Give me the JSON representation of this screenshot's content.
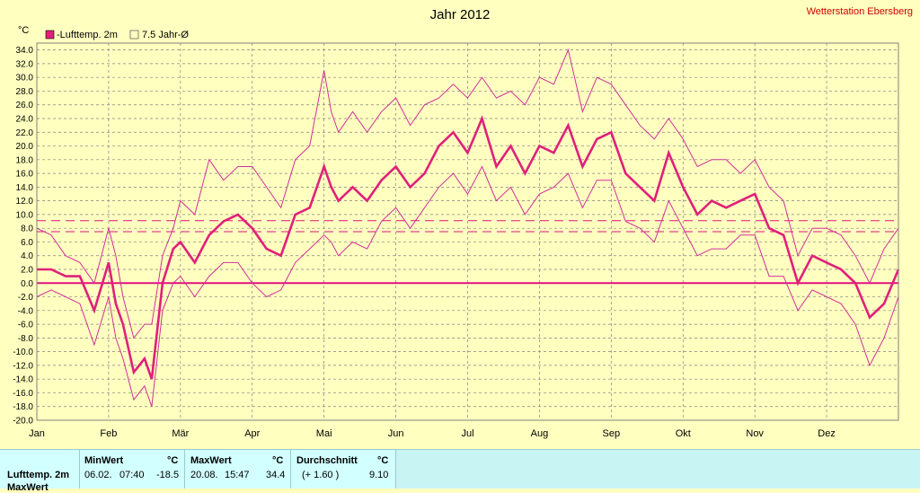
{
  "chart_data": {
    "type": "line",
    "title": "Jahr 2012",
    "station": "Wetterstation Ebersberg",
    "ylabel": "°C",
    "ylim": [
      -20,
      35
    ],
    "yticks": [
      "34.0",
      "32.0",
      "30.0",
      "28.0",
      "26.0",
      "24.0",
      "22.0",
      "20.0",
      "18.0",
      "16.0",
      "14.0",
      "12.0",
      "10.0",
      "8.0",
      "6.0",
      "4.0",
      "2.0",
      "0.0",
      "-2.0",
      "-4.0",
      "-6.0",
      "-8.0",
      "-10.0",
      "-12.0",
      "-14.0",
      "-16.0",
      "-18.0",
      "-20.0"
    ],
    "xticks": [
      "Jan",
      "Feb",
      "Mär",
      "Apr",
      "Mai",
      "Jun",
      "Jul",
      "Aug",
      "Sep",
      "Okt",
      "Nov",
      "Dez"
    ],
    "grid": true,
    "legend": "top-left",
    "legend_entries": [
      "-Lufttemp. 2m",
      "7.5 Jahr-Ø"
    ],
    "colors": {
      "series": "#e0207a",
      "minmax": "#d0309a",
      "zero": "#e01080",
      "bg": "#ffffc0",
      "grid": "#808080"
    },
    "reference_lines": [
      9.1,
      7.5,
      0.0
    ],
    "series": [
      {
        "name": "-Lufttemp. 2m",
        "x_month": [
          0,
          0.2,
          0.4,
          0.6,
          0.8,
          1.0,
          1.1,
          1.2,
          1.35,
          1.5,
          1.6,
          1.75,
          1.9,
          2.0,
          2.2,
          2.4,
          2.6,
          2.8,
          3.0,
          3.2,
          3.4,
          3.6,
          3.8,
          4.0,
          4.1,
          4.2,
          4.4,
          4.6,
          4.8,
          5.0,
          5.2,
          5.4,
          5.6,
          5.8,
          6.0,
          6.2,
          6.4,
          6.6,
          6.8,
          7.0,
          7.2,
          7.4,
          7.6,
          7.8,
          8.0,
          8.2,
          8.4,
          8.6,
          8.8,
          9.0,
          9.2,
          9.4,
          9.6,
          9.8,
          10.0,
          10.2,
          10.4,
          10.6,
          10.8,
          11.0,
          11.2,
          11.4,
          11.6,
          11.8,
          12.0
        ],
        "mean": [
          2,
          2,
          1,
          1,
          -4,
          3,
          -3,
          -6,
          -13,
          -11,
          -14,
          0,
          5,
          6,
          3,
          7,
          9,
          10,
          8,
          5,
          4,
          10,
          11,
          17,
          14,
          12,
          14,
          12,
          15,
          17,
          14,
          16,
          20,
          22,
          19,
          24,
          17,
          20,
          16,
          20,
          19,
          23,
          17,
          21,
          22,
          16,
          14,
          12,
          19,
          14,
          10,
          12,
          11,
          12,
          13,
          8,
          7,
          0,
          4,
          3,
          2,
          0,
          -5,
          -3,
          2
        ],
        "max": [
          8,
          7,
          4,
          3,
          0,
          8,
          4,
          -2,
          -8,
          -6,
          -6,
          4,
          8,
          12,
          10,
          18,
          15,
          17,
          17,
          14,
          11,
          18,
          20,
          31,
          25,
          22,
          25,
          22,
          25,
          27,
          23,
          26,
          27,
          29,
          27,
          30,
          27,
          28,
          26,
          30,
          29,
          34,
          25,
          30,
          29,
          26,
          23,
          21,
          24,
          21,
          17,
          18,
          18,
          16,
          18,
          14,
          12,
          4,
          8,
          8,
          7,
          4,
          0,
          5,
          8
        ],
        "min": [
          -2,
          -1,
          -2,
          -3,
          -9,
          -2,
          -8,
          -11,
          -17,
          -15,
          -18,
          -4,
          0,
          1,
          -2,
          1,
          3,
          3,
          0,
          -2,
          -1,
          3,
          5,
          7,
          6,
          4,
          6,
          5,
          9,
          11,
          8,
          11,
          14,
          16,
          13,
          17,
          12,
          14,
          10,
          13,
          14,
          16,
          11,
          15,
          15,
          9,
          8,
          6,
          12,
          8,
          4,
          5,
          5,
          7,
          7,
          1,
          1,
          -4,
          -1,
          -2,
          -3,
          -6,
          -12,
          -8,
          -2
        ]
      }
    ]
  },
  "stats": {
    "row_label": "Lufttemp. 2m",
    "row_label2": "MaxWert",
    "headers": {
      "min": "MinWert",
      "max": "MaxWert",
      "avg": "Durchschnitt",
      "unit": "°C"
    },
    "min": {
      "date": "06.02.",
      "time": "07:40",
      "value": "-18.5"
    },
    "max": {
      "date": "20.08.",
      "time": "15:47",
      "value": "34.4"
    },
    "avg": {
      "delta": "(+ 1.60 )",
      "value": "9.10"
    }
  }
}
